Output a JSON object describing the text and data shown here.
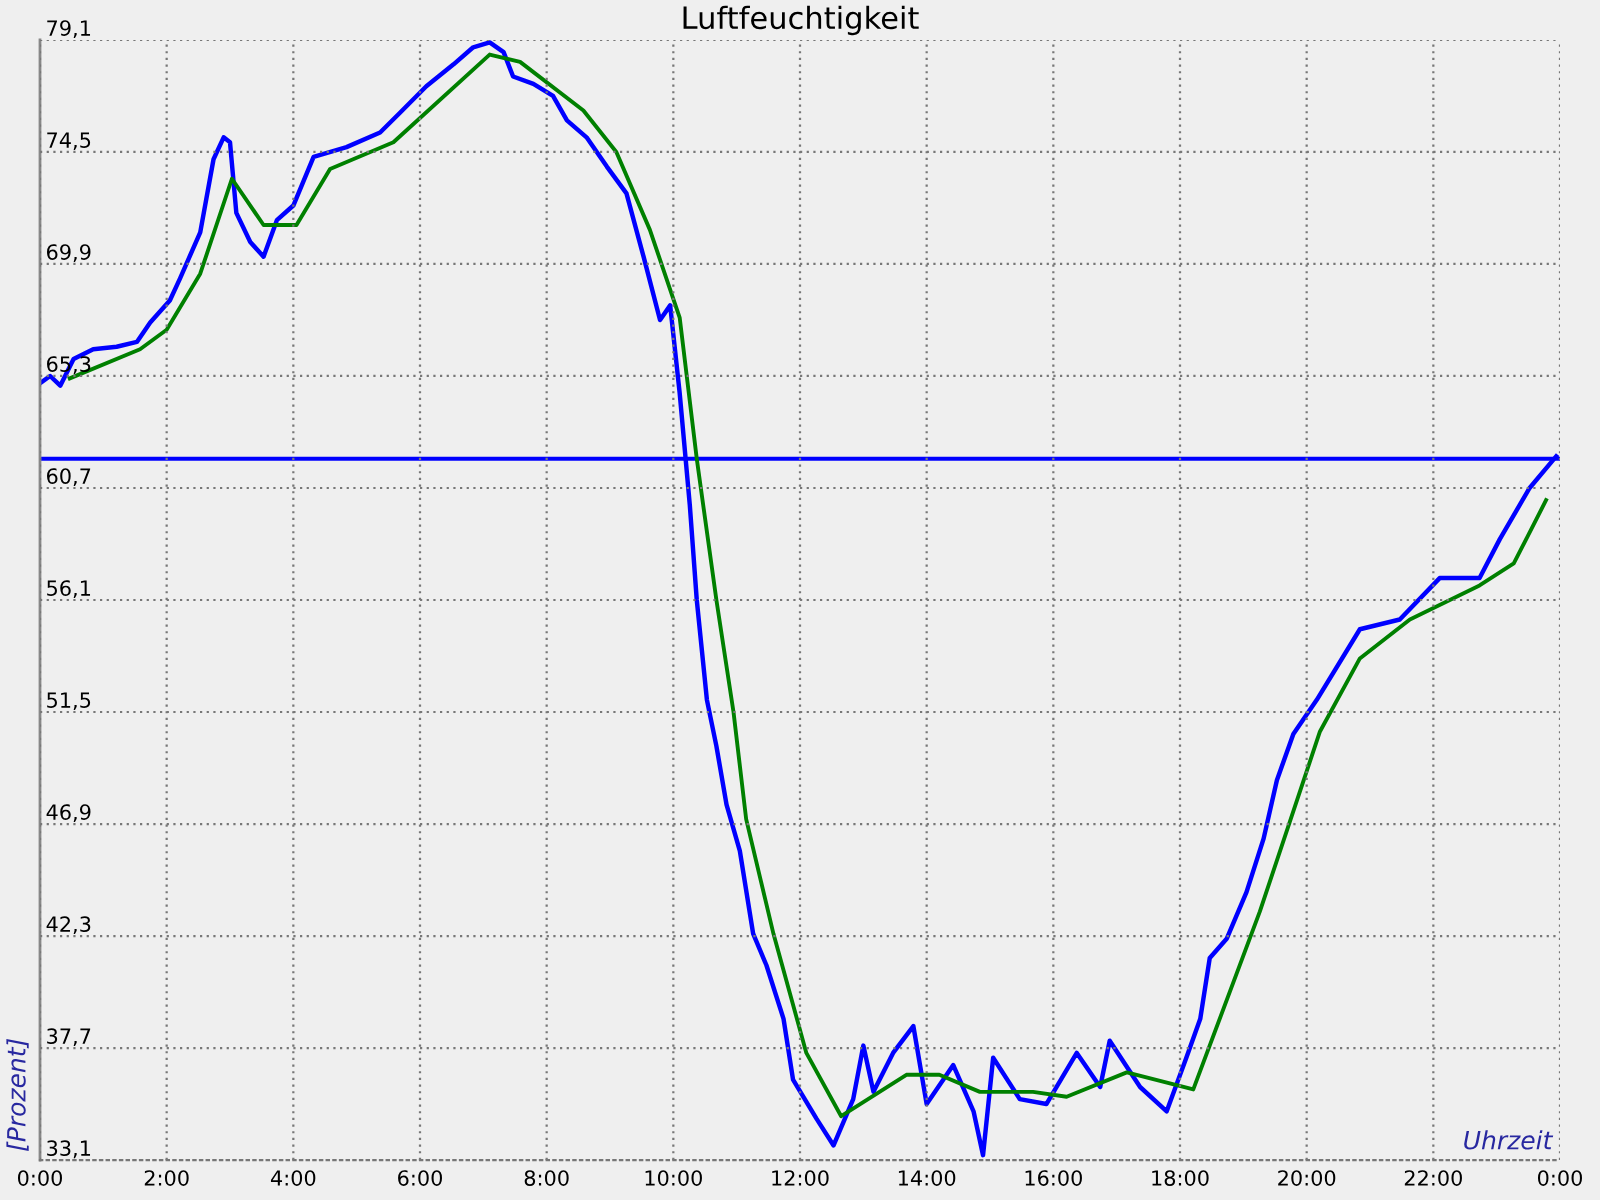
{
  "chart_data": {
    "type": "line",
    "title": "Luftfeuchtigkeit",
    "xlabel": "Uhrzeit",
    "ylabel": "[Prozent]",
    "series": [
      {
        "color": "#0000ff",
        "x": [
          0,
          0.16,
          0.32,
          0.53,
          0.84,
          1.21,
          1.53,
          1.74,
          2.05,
          2.21,
          2.53,
          2.74,
          2.9,
          3.0,
          3.1,
          3.32,
          3.53,
          3.74,
          4.0,
          4.32,
          4.84,
          5.37,
          5.68,
          6.1,
          6.53,
          6.84,
          7.1,
          7.32,
          7.47,
          7.79,
          8.1,
          8.32,
          8.63,
          8.95,
          9.26,
          9.53,
          9.79,
          9.95,
          10.1,
          10.26,
          10.37,
          10.53,
          10.68,
          10.84,
          11.05,
          11.26,
          11.47,
          11.74,
          11.89,
          12.26,
          12.53,
          12.84,
          13.0,
          13.16,
          13.47,
          13.79,
          14.0,
          14.42,
          14.74,
          14.89,
          15.05,
          15.47,
          15.89,
          16.37,
          16.74,
          16.89,
          17.37,
          17.79,
          18.1,
          18.32,
          18.47,
          18.74,
          19.05,
          19.32,
          19.53,
          19.79,
          20.16,
          20.84,
          21.47,
          22.1,
          22.73,
          23.05,
          23.52,
          23.94
        ],
        "values": [
          65.0,
          65.3,
          64.9,
          66.0,
          66.4,
          66.5,
          66.7,
          67.5,
          68.4,
          69.3,
          71.2,
          74.2,
          75.1,
          74.9,
          72.0,
          70.8,
          70.2,
          71.7,
          72.3,
          74.3,
          74.7,
          75.3,
          76.1,
          77.2,
          78.1,
          78.8,
          79.0,
          78.6,
          77.6,
          77.3,
          76.8,
          75.8,
          75.1,
          73.9,
          72.8,
          70.2,
          67.6,
          68.2,
          64.6,
          60.0,
          56.1,
          52.0,
          50.1,
          47.7,
          45.8,
          42.4,
          41.1,
          38.9,
          36.4,
          34.8,
          33.7,
          35.6,
          37.8,
          35.9,
          37.5,
          38.6,
          35.4,
          37.0,
          35.1,
          33.3,
          37.3,
          35.6,
          35.4,
          37.5,
          36.1,
          38.0,
          36.1,
          35.1,
          37.3,
          38.9,
          41.4,
          42.2,
          44.1,
          46.3,
          48.7,
          50.6,
          52.0,
          54.9,
          55.3,
          57.0,
          57.0,
          58.6,
          60.7,
          62.0
        ]
      },
      {
        "color": "#008000",
        "x": [
          0.47,
          1.58,
          2.0,
          2.53,
          3.03,
          3.53,
          4.05,
          4.58,
          5.58,
          7.1,
          7.58,
          8.58,
          9.1,
          9.63,
          10.1,
          10.37,
          10.68,
          10.95,
          11.15,
          11.58,
          12.1,
          12.65,
          12.95,
          13.68,
          14.2,
          14.84,
          15.68,
          16.21,
          17.16,
          18.21,
          19.26,
          20.21,
          20.84,
          21.63,
          22.73,
          23.27,
          23.78
        ],
        "values": [
          65.2,
          66.4,
          67.2,
          69.5,
          73.4,
          71.5,
          71.5,
          73.8,
          74.9,
          78.5,
          78.2,
          76.2,
          74.5,
          71.3,
          67.7,
          61.9,
          56.1,
          51.5,
          47.1,
          42.4,
          37.5,
          34.9,
          35.4,
          36.6,
          36.6,
          35.9,
          35.9,
          35.7,
          36.7,
          36.0,
          43.3,
          50.7,
          53.7,
          55.3,
          56.7,
          57.6,
          60.2
        ]
      }
    ],
    "ref_lines": [
      {
        "axis": "y",
        "value": 61.9,
        "color": "#0000ff"
      }
    ],
    "xlim": [
      0,
      24
    ],
    "ylim": [
      33.1,
      79.1
    ],
    "xticks": [
      {
        "value": 0,
        "label": "0:00"
      },
      {
        "value": 2,
        "label": "2:00"
      },
      {
        "value": 4,
        "label": "4:00"
      },
      {
        "value": 6,
        "label": "6:00"
      },
      {
        "value": 8,
        "label": "8:00"
      },
      {
        "value": 10,
        "label": "10:00"
      },
      {
        "value": 12,
        "label": "12:00"
      },
      {
        "value": 14,
        "label": "14:00"
      },
      {
        "value": 16,
        "label": "16:00"
      },
      {
        "value": 18,
        "label": "18:00"
      },
      {
        "value": 20,
        "label": "20:00"
      },
      {
        "value": 22,
        "label": "22:00"
      },
      {
        "value": 24,
        "label": "0:00"
      }
    ],
    "yticks": [
      {
        "value": 33.1,
        "label": "33,1"
      },
      {
        "value": 37.7,
        "label": "37,7"
      },
      {
        "value": 42.3,
        "label": "42,3"
      },
      {
        "value": 46.9,
        "label": "46,9"
      },
      {
        "value": 51.5,
        "label": "51,5"
      },
      {
        "value": 56.1,
        "label": "56,1"
      },
      {
        "value": 60.7,
        "label": "60,7"
      },
      {
        "value": 65.3,
        "label": "65,3"
      },
      {
        "value": 69.9,
        "label": "69,9"
      },
      {
        "value": 74.5,
        "label": "74,5"
      },
      {
        "value": 79.1,
        "label": "79,1"
      }
    ],
    "grid": true,
    "marker": "none",
    "line_style": "solid"
  }
}
